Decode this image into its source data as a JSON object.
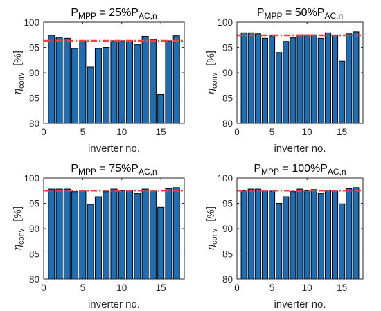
{
  "layout": {
    "colors": {
      "bar": "#1f6db3",
      "bar_edge": "#000000",
      "ref_line": "#ff3b3b",
      "axis": "#262626"
    }
  },
  "chart_data": [
    {
      "type": "bar",
      "title": {
        "base": "P",
        "base_sub": "MPP",
        "mid": " = 25%P",
        "end_sub": "AC,n"
      },
      "xlabel": "inverter no.",
      "ylabel": {
        "symbol": "η",
        "sub": "conv",
        "unit": "[%]"
      },
      "x": [
        1,
        2,
        3,
        4,
        5,
        6,
        7,
        8,
        9,
        10,
        11,
        12,
        13,
        14,
        15,
        16,
        17
      ],
      "values": [
        97.4,
        97.0,
        96.8,
        94.8,
        96.3,
        91.1,
        94.8,
        95.0,
        96.3,
        96.3,
        96.3,
        95.6,
        97.2,
        96.6,
        85.7,
        96.3,
        97.3
      ],
      "reference_line": 96.3,
      "xlim": [
        0,
        18
      ],
      "ylim": [
        80,
        100
      ],
      "xticks": [
        0,
        5,
        10,
        15
      ],
      "yticks": [
        80,
        85,
        90,
        95,
        100
      ],
      "grid": false
    },
    {
      "type": "bar",
      "title": {
        "base": "P",
        "base_sub": "MPP",
        "mid": " = 50%P",
        "end_sub": "AC,n"
      },
      "xlabel": "inverter no.",
      "ylabel": {
        "symbol": "η",
        "sub": "conv",
        "unit": "[%]"
      },
      "x": [
        1,
        2,
        3,
        4,
        5,
        6,
        7,
        8,
        9,
        10,
        11,
        12,
        13,
        14,
        15,
        16,
        17
      ],
      "values": [
        97.9,
        97.9,
        97.7,
        96.8,
        97.3,
        94.0,
        96.2,
        96.9,
        97.5,
        97.5,
        97.5,
        96.8,
        97.9,
        97.4,
        92.3,
        97.7,
        98.1
      ],
      "reference_line": 97.4,
      "xlim": [
        0,
        18
      ],
      "ylim": [
        80,
        100
      ],
      "xticks": [
        0,
        5,
        10,
        15
      ],
      "yticks": [
        80,
        85,
        90,
        95,
        100
      ],
      "grid": false
    },
    {
      "type": "bar",
      "title": {
        "base": "P",
        "base_sub": "MPP",
        "mid": " = 75%P",
        "end_sub": "AC,n"
      },
      "xlabel": "inverter no.",
      "ylabel": {
        "symbol": "η",
        "sub": "conv",
        "unit": "[%]"
      },
      "x": [
        1,
        2,
        3,
        4,
        5,
        6,
        7,
        8,
        9,
        10,
        11,
        12,
        13,
        14,
        15,
        16,
        17
      ],
      "values": [
        97.8,
        97.8,
        97.8,
        97.3,
        97.4,
        94.8,
        96.3,
        97.3,
        97.8,
        97.5,
        97.6,
        96.9,
        97.8,
        97.4,
        94.2,
        97.9,
        98.1
      ],
      "reference_line": 97.5,
      "xlim": [
        0,
        18
      ],
      "ylim": [
        80,
        100
      ],
      "xticks": [
        0,
        5,
        10,
        15
      ],
      "yticks": [
        80,
        85,
        90,
        95,
        100
      ],
      "grid": false
    },
    {
      "type": "bar",
      "title": {
        "base": "P",
        "base_sub": "MPP",
        "mid": " = 100%P",
        "end_sub": "AC,n"
      },
      "xlabel": "inverter no.",
      "ylabel": {
        "symbol": "η",
        "sub": "conv",
        "unit": "[%]"
      },
      "x": [
        1,
        2,
        3,
        4,
        5,
        6,
        7,
        8,
        9,
        10,
        11,
        12,
        13,
        14,
        15,
        16,
        17
      ],
      "values": [
        97.5,
        97.8,
        97.8,
        97.4,
        97.4,
        95.0,
        96.3,
        97.3,
        97.8,
        97.5,
        97.7,
        96.9,
        97.6,
        97.4,
        94.9,
        97.9,
        98.1
      ],
      "reference_line": 97.5,
      "xlim": [
        0,
        18
      ],
      "ylim": [
        80,
        100
      ],
      "xticks": [
        0,
        5,
        10,
        15
      ],
      "yticks": [
        80,
        85,
        90,
        95,
        100
      ],
      "grid": false
    }
  ]
}
